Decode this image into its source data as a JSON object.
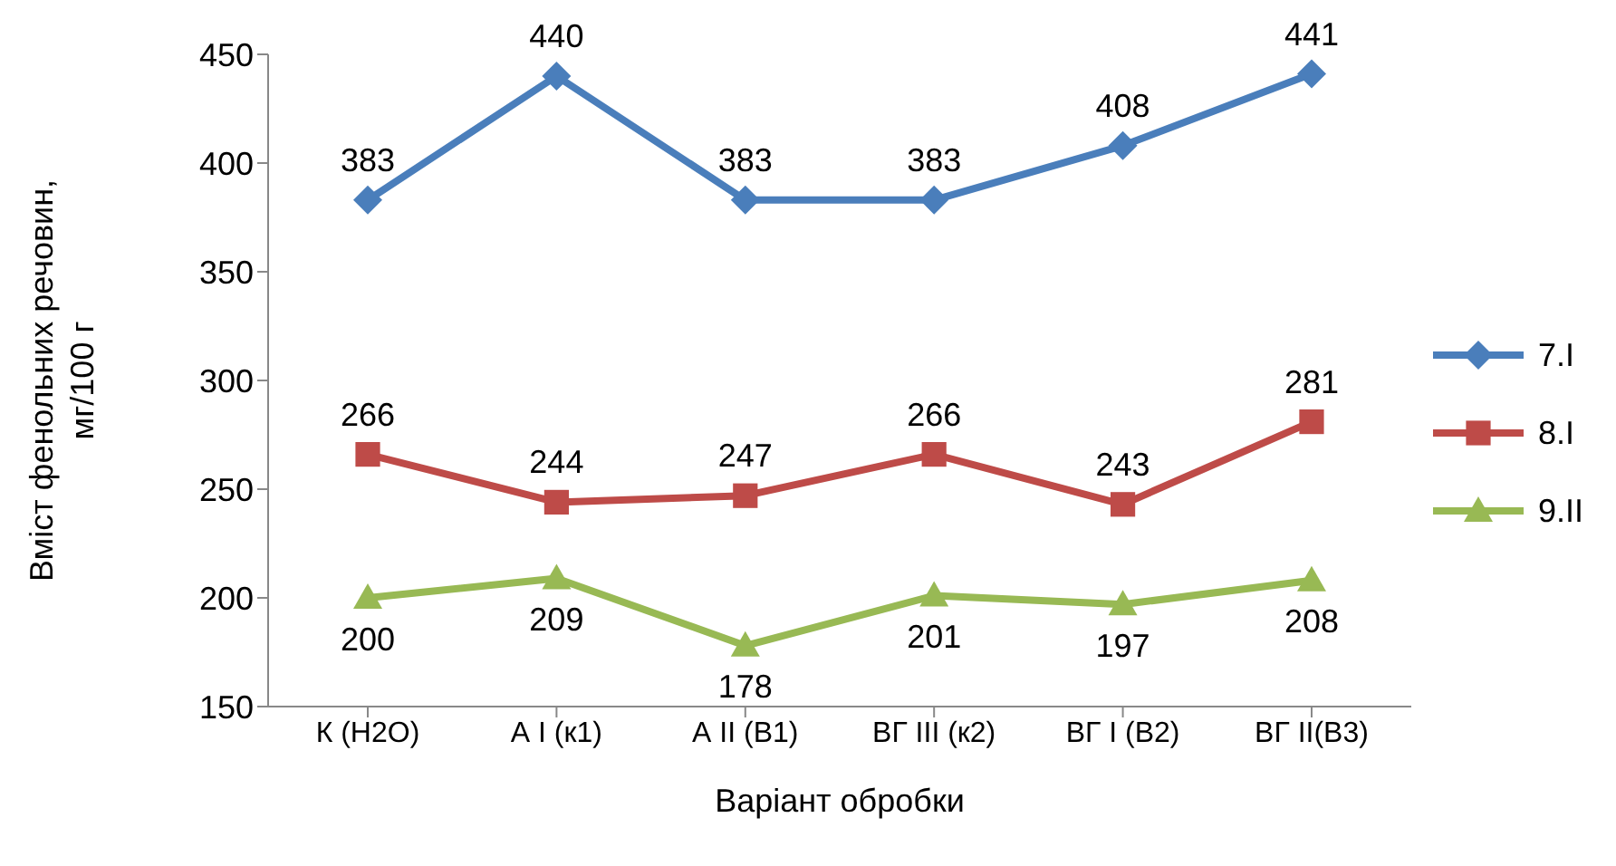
{
  "chart_data": {
    "type": "line",
    "xlabel": "Варіант обробки",
    "ylabel": "Вміст фенольних речовин, мг/100 г",
    "categories": [
      "К (H2O)",
      "А І (к1)",
      "А ІІ (В1)",
      "ВГ ІІІ (к2)",
      "ВГ І (В2)",
      "ВГ ІІ(В3)"
    ],
    "series": [
      {
        "name": "7.I",
        "color": "#4a7ebb",
        "marker": "diamond",
        "values": [
          383,
          440,
          383,
          383,
          408,
          441
        ]
      },
      {
        "name": "8.I",
        "color": "#be4b48",
        "marker": "square",
        "values": [
          266,
          244,
          247,
          266,
          243,
          281
        ]
      },
      {
        "name": "9.II",
        "color": "#98b954",
        "marker": "triangle",
        "values": [
          200,
          209,
          178,
          201,
          197,
          208
        ]
      }
    ],
    "ylim": [
      150,
      450
    ],
    "yticks": [
      150,
      200,
      250,
      300,
      350,
      400,
      450
    ],
    "grid": false,
    "legend": "right",
    "data_labels": true,
    "line_style": "solid"
  }
}
